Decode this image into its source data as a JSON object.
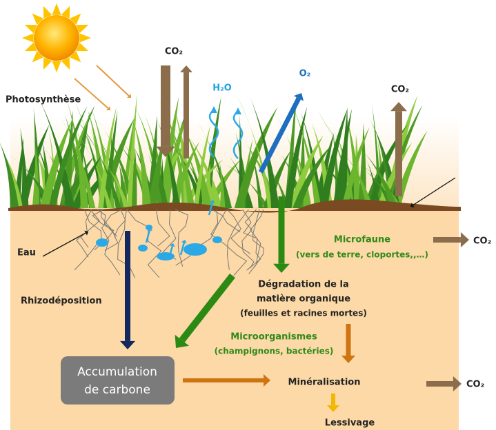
{
  "labels": {
    "photosynthesis": "Photosynthèse",
    "co2_top": "CO₂",
    "h2o": "H₂O",
    "o2": "O₂",
    "co2_right_top": "CO₂",
    "water": "Eau",
    "rhizodeposition": "Rhizodéposition",
    "microfauna": "Microfaune",
    "microfauna_examples": "(vers de terre, cloportes,,…)",
    "co2_microfauna": "CO₂",
    "degradation": [
      "Dégradation de la",
      "matière organique",
      "(feuilles et racines mortes)"
    ],
    "microorganisms": "Microorganismes",
    "microorganisms_examples": "(champignons, bactéries)",
    "accumulation": [
      "Accumulation",
      "de carbone"
    ],
    "mineralisation": "Minéralisation",
    "co2_mineralisation": "CO₂",
    "leaching": "Lessivage"
  }
}
